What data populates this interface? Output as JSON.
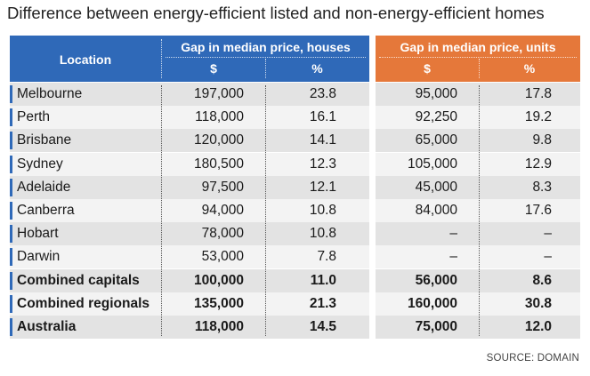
{
  "title": "Difference between energy-efficient listed and non-energy-efficient homes",
  "source": "SOURCE: DOMAIN",
  "colors": {
    "houses_header": "#2f69b8",
    "units_header": "#e5783a",
    "row_dark": "#e3e3e3",
    "row_light": "#f3f3f3",
    "accent": "#2f69b8"
  },
  "chart_data": {
    "type": "table",
    "title": "Difference between energy-efficient listed and non-energy-efficient homes",
    "column_header": "Location",
    "group_houses": "Gap in median price, houses",
    "group_units": "Gap in median price, units",
    "sub_dollar": "$",
    "sub_percent": "%",
    "rows": [
      {
        "location": "Melbourne",
        "houses_dollar": "197,000",
        "houses_pct": "23.8",
        "units_dollar": "95,000",
        "units_pct": "17.8",
        "bold": false
      },
      {
        "location": "Perth",
        "houses_dollar": "118,000",
        "houses_pct": "16.1",
        "units_dollar": "92,250",
        "units_pct": "19.2",
        "bold": false
      },
      {
        "location": "Brisbane",
        "houses_dollar": "120,000",
        "houses_pct": "14.1",
        "units_dollar": "65,000",
        "units_pct": "9.8",
        "bold": false
      },
      {
        "location": "Sydney",
        "houses_dollar": "180,500",
        "houses_pct": "12.3",
        "units_dollar": "105,000",
        "units_pct": "12.9",
        "bold": false
      },
      {
        "location": "Adelaide",
        "houses_dollar": "97,500",
        "houses_pct": "12.1",
        "units_dollar": "45,000",
        "units_pct": "8.3",
        "bold": false
      },
      {
        "location": "Canberra",
        "houses_dollar": "94,000",
        "houses_pct": "10.8",
        "units_dollar": "84,000",
        "units_pct": "17.6",
        "bold": false
      },
      {
        "location": "Hobart",
        "houses_dollar": "78,000",
        "houses_pct": "10.8",
        "units_dollar": "–",
        "units_pct": "–",
        "bold": false
      },
      {
        "location": "Darwin",
        "houses_dollar": "53,000",
        "houses_pct": "7.8",
        "units_dollar": "–",
        "units_pct": "–",
        "bold": false
      },
      {
        "location": "Combined capitals",
        "houses_dollar": "100,000",
        "houses_pct": "11.0",
        "units_dollar": "56,000",
        "units_pct": "8.6",
        "bold": true
      },
      {
        "location": "Combined regionals",
        "houses_dollar": "135,000",
        "houses_pct": "21.3",
        "units_dollar": "160,000",
        "units_pct": "30.8",
        "bold": true
      },
      {
        "location": "Australia",
        "houses_dollar": "118,000",
        "houses_pct": "14.5",
        "units_dollar": "75,000",
        "units_pct": "12.0",
        "bold": true
      }
    ]
  }
}
